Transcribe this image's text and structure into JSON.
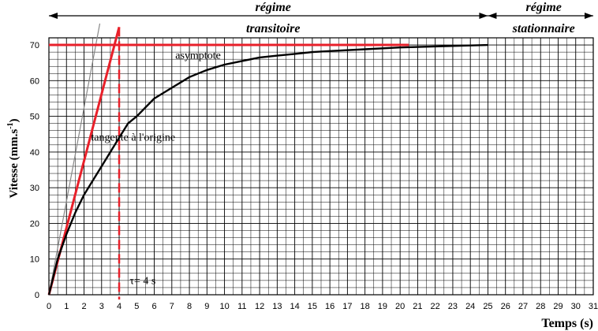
{
  "chart_data": {
    "type": "line",
    "title": "",
    "xlabel": "Temps (s)",
    "ylabel": "Vitesse (mm.s",
    "ylabel_sup": "-1",
    "ylabel_close": ")",
    "xlim": [
      0,
      31
    ],
    "ylim": [
      0,
      72
    ],
    "x_ticks": [
      0,
      1,
      2,
      3,
      4,
      5,
      6,
      7,
      8,
      9,
      10,
      11,
      12,
      13,
      14,
      15,
      16,
      17,
      18,
      19,
      20,
      21,
      22,
      23,
      24,
      25,
      26,
      27,
      28,
      29,
      30,
      31
    ],
    "y_ticks": [
      0,
      10,
      20,
      30,
      40,
      50,
      60,
      70
    ],
    "grid": true,
    "series": [
      {
        "name": "",
        "color": "#000000",
        "x": [
          0,
          0.5,
          1,
          1.5,
          2,
          2.5,
          3,
          3.5,
          4,
          4.5,
          5,
          6,
          7,
          8,
          9,
          10,
          11,
          12,
          13,
          14,
          15,
          16,
          18,
          20,
          22,
          25
        ],
        "y": [
          0,
          10,
          17,
          23,
          28,
          32,
          36,
          40,
          44,
          48,
          50,
          55,
          58,
          61,
          63,
          64.5,
          65.5,
          66.5,
          67,
          67.5,
          68,
          68.3,
          68.8,
          69.3,
          69.6,
          70
        ]
      }
    ],
    "tangent": {
      "color": "#e8202a",
      "x": [
        0,
        4
      ],
      "y": [
        0,
        75
      ]
    },
    "thin_line": {
      "color": "#888888",
      "x": [
        0,
        2.9
      ],
      "y": [
        0,
        76
      ]
    },
    "asymptote": {
      "color": "#e8202a",
      "y": 70,
      "x_end": 20.5
    },
    "tau": {
      "color": "#e8202a",
      "x": 4,
      "label": "τ= 4 s"
    },
    "annotations": {
      "asymptote_label": "asymptote",
      "tangent_label": "tangente à l'origine"
    },
    "regions": {
      "transitory_line1": "régime",
      "transitory_line2": "transitoire",
      "stationary_line1": "régime",
      "stationary_line2": "stationnaire",
      "boundary_x": 25
    }
  }
}
